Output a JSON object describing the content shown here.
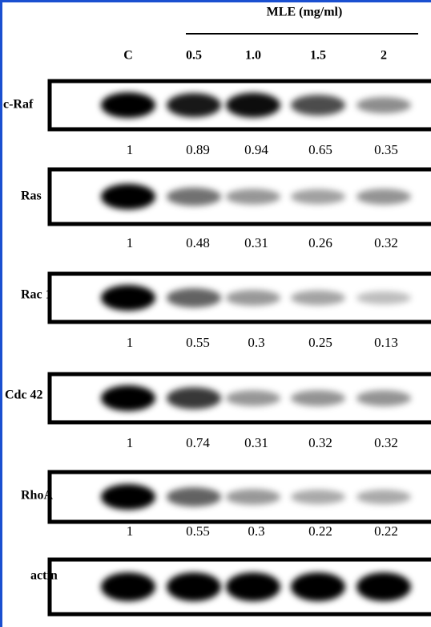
{
  "header": {
    "treatment": "MLE (mg/ml)",
    "lanes": [
      "C",
      "0.5",
      "1.0",
      "1.5",
      "2"
    ]
  },
  "blots": [
    {
      "label": "c-Raf",
      "values": [
        1,
        0.89,
        0.94,
        0.65,
        0.35
      ]
    },
    {
      "label": "Ras",
      "values": [
        1,
        0.48,
        0.31,
        0.26,
        0.32
      ]
    },
    {
      "label": "Rac 1",
      "values": [
        1,
        0.55,
        0.3,
        0.25,
        0.13
      ]
    },
    {
      "label": "Cdc 42",
      "values": [
        1,
        0.74,
        0.31,
        0.32,
        0.32
      ]
    },
    {
      "label": "RhoA",
      "values": [
        1,
        0.55,
        0.3,
        0.22,
        0.22
      ]
    },
    {
      "label": "actin"
    }
  ]
}
